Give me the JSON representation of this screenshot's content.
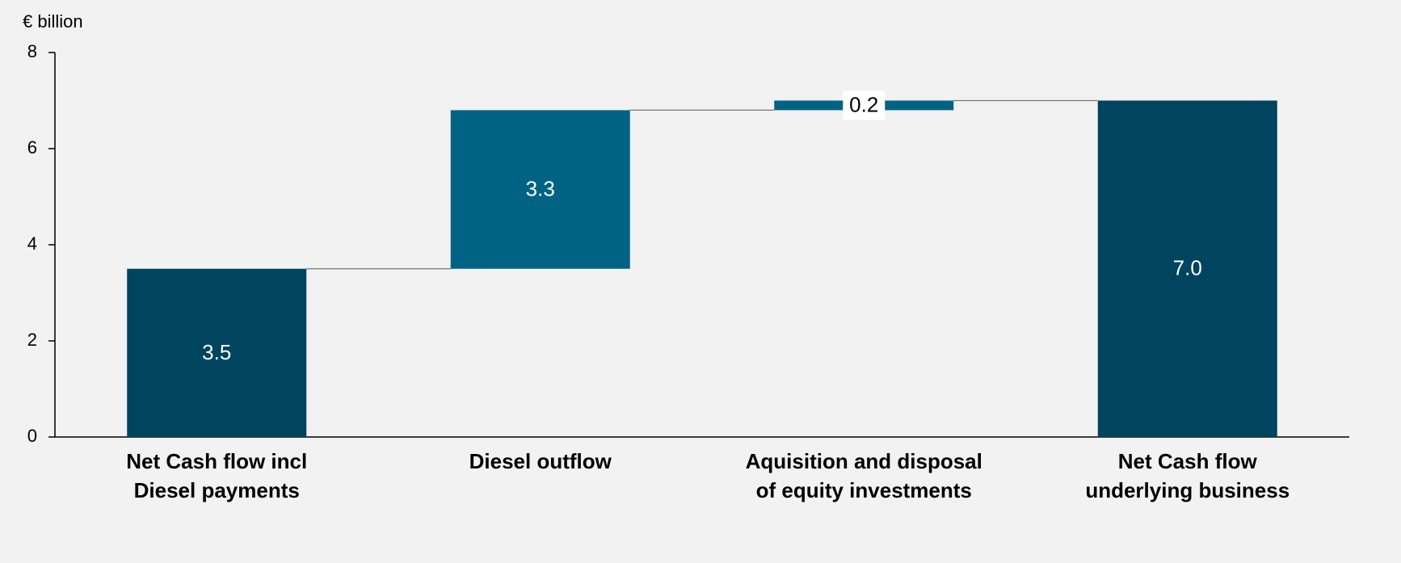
{
  "chart_data": {
    "type": "waterfall",
    "y_axis_label": "€ billion",
    "categories": [
      [
        "Net Cash flow incl",
        "Diesel payments"
      ],
      [
        "Diesel outflow"
      ],
      [
        "Aquisition and disposal",
        "of equity investments"
      ],
      [
        "Net Cash flow",
        "underlying business"
      ]
    ],
    "values": [
      3.5,
      3.3,
      0.2,
      7.0
    ],
    "value_labels": [
      "3.5",
      "3.3",
      "0.2",
      "7.0"
    ],
    "measure": [
      "absolute",
      "relative",
      "relative",
      "total"
    ],
    "colors": [
      "#00445f",
      "#006384",
      "#006384",
      "#00445f"
    ],
    "ylim": [
      0,
      8
    ],
    "yticks": [
      0,
      2,
      4,
      6,
      8
    ]
  }
}
